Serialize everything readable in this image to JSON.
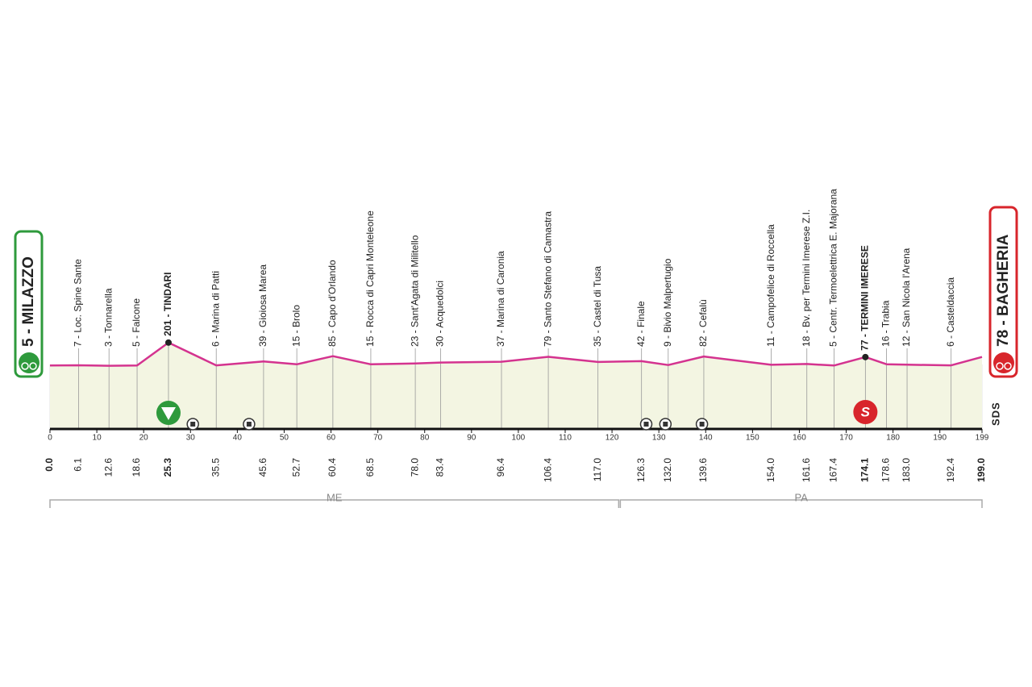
{
  "chart_data": {
    "type": "profile",
    "start": "5 - MILAZZO",
    "finish": "78 - BAGHERIA",
    "logo": "SDS",
    "line_color": "#d4338f",
    "fill_color": "#f3f5e2",
    "xlim": [
      0,
      199
    ],
    "xticks": [
      0,
      10,
      20,
      30,
      40,
      50,
      60,
      70,
      80,
      90,
      100,
      110,
      120,
      130,
      140,
      150,
      160,
      170,
      180,
      190,
      199
    ],
    "regions": [
      {
        "name": "ME",
        "from": 0,
        "to": 121.6
      },
      {
        "name": "PA",
        "from": 121.6,
        "to": 199
      }
    ],
    "waypoints": [
      {
        "km": {
          "value": 0,
          "label": "0.0"
        },
        "alt": 5,
        "highlight": true
      },
      {
        "km": 6.1,
        "alt": 7,
        "name": "7 - Loc. Spine Sante"
      },
      {
        "km": 12.6,
        "alt": 3,
        "name": "3 - Tonnarella"
      },
      {
        "km": 18.6,
        "alt": 5,
        "name": "5 - Falcone"
      },
      {
        "km": 25.3,
        "alt": 201,
        "name": "201 - TINDARI",
        "highlight": true
      },
      {
        "km": 35.5,
        "alt": 6,
        "name": "6 - Marina di Patti"
      },
      {
        "km": 45.6,
        "alt": 39,
        "name": "39 - Gioiosa Marea"
      },
      {
        "km": 52.7,
        "alt": 15,
        "name": "15 - Brolo"
      },
      {
        "km": 60.4,
        "alt": 85,
        "name": "85 - Capo d'Orlando"
      },
      {
        "km": 68.5,
        "alt": 15,
        "name": "15 - Rocca di Capri Monteleone"
      },
      {
        "km": {
          "value": 78,
          "label": "78.0"
        },
        "alt": 23,
        "name": "23 - Sant'Agata di Militello"
      },
      {
        "km": 83.4,
        "alt": 30,
        "name": "30 - Acquedolci"
      },
      {
        "km": 96.4,
        "alt": 37,
        "name": "37 - Marina di Caronia"
      },
      {
        "km": 106.4,
        "alt": 79,
        "name": "79 - Santo Stefano di Camastra"
      },
      {
        "km": {
          "value": 117,
          "label": "117.0"
        },
        "alt": 35,
        "name": "35 - Castel di Tusa"
      },
      {
        "km": 126.3,
        "alt": 42,
        "name": "42 - Finale"
      },
      {
        "km": {
          "value": 132,
          "label": "132.0"
        },
        "alt": 9,
        "name": "9 - Bivio Malpertugio"
      },
      {
        "km": 139.6,
        "alt": 82,
        "name": "82 - Cefalù"
      },
      {
        "km": {
          "value": 154,
          "label": "154.0"
        },
        "alt": 11,
        "name": "11 - Campofelice di Roccella"
      },
      {
        "km": 161.6,
        "alt": 18,
        "name": "18 - Bv. per Termini Imerese Z.I."
      },
      {
        "km": 167.4,
        "alt": 5,
        "name": "5 - Centr. Termoelettrica E. Majorana"
      },
      {
        "km": 174.1,
        "alt": 77,
        "name": "77 - TERMINI IMERESE",
        "highlight": true
      },
      {
        "km": 178.6,
        "alt": 16,
        "name": "16 - Trabia"
      },
      {
        "km": {
          "value": 183,
          "label": "183.0"
        },
        "alt": 12,
        "name": "12 - San Nicola l'Arena"
      },
      {
        "km": 192.4,
        "alt": 6,
        "name": "6 - Casteldaccia"
      },
      {
        "km": {
          "value": 199,
          "label": "199.0"
        },
        "alt": 78,
        "highlight": true
      }
    ]
  }
}
